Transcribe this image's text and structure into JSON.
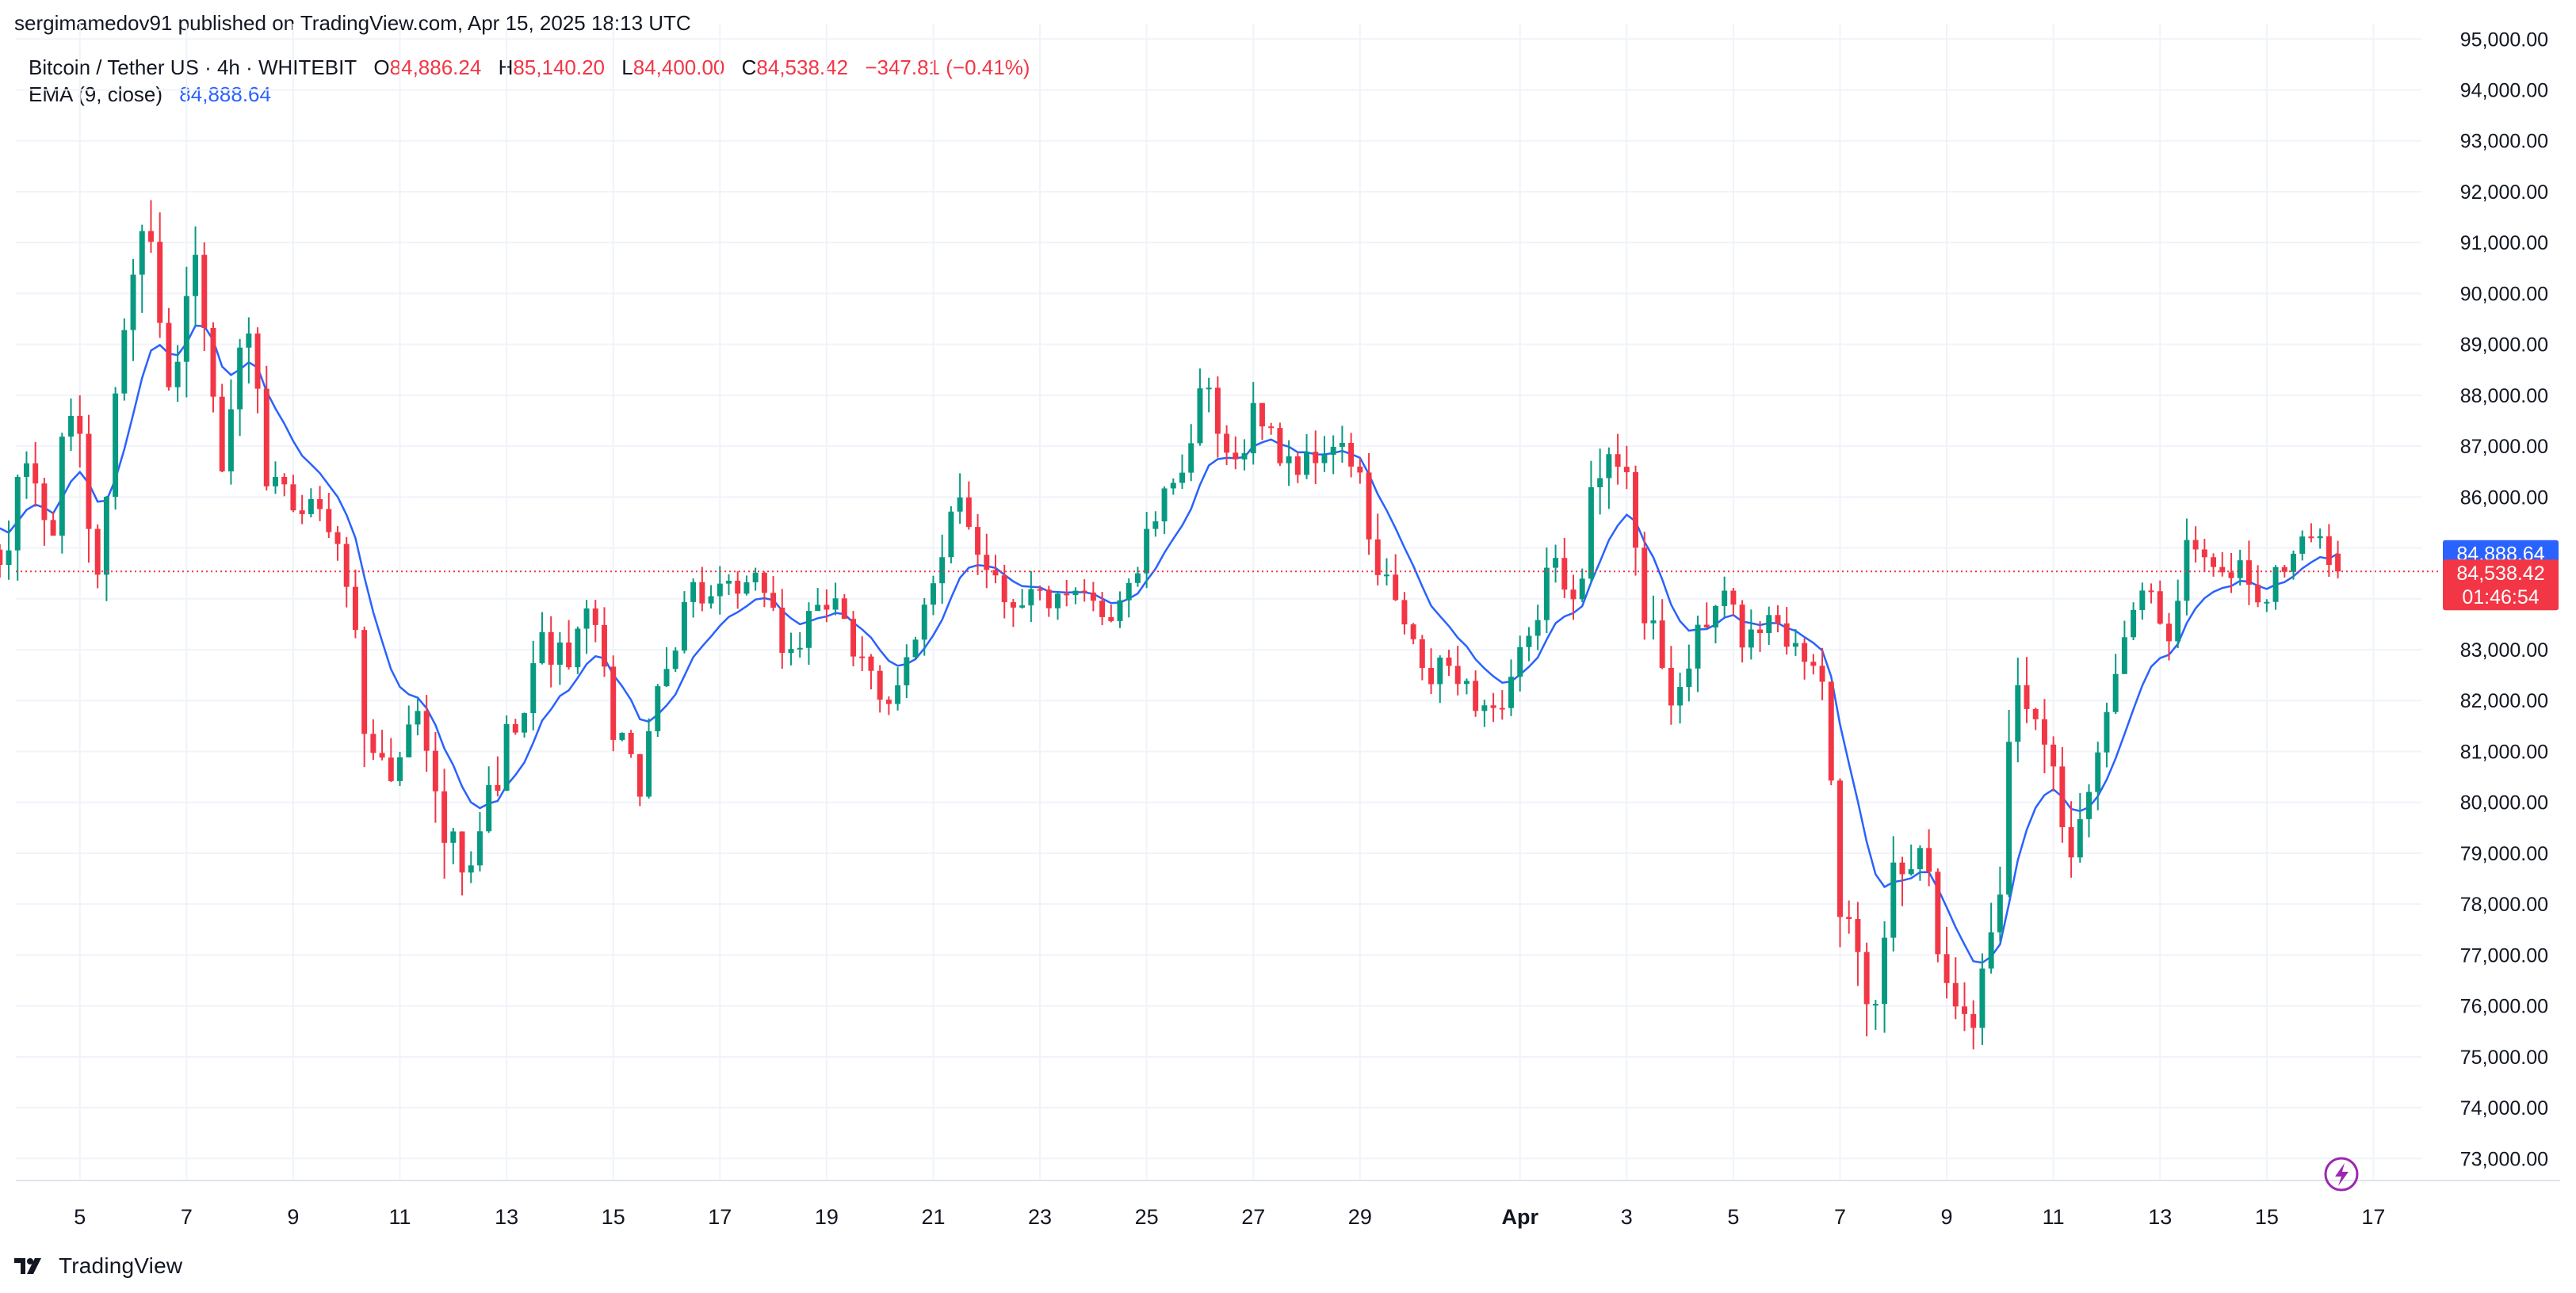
{
  "header": {
    "published": "sergimamedov91 published on TradingView.com, Apr 15, 2025 18:13 UTC",
    "symbol": "Bitcoin / Tether US · 4h · WHITEBIT",
    "open_label": "O",
    "open": "84,886.24",
    "high_label": "H",
    "high": "85,140.20",
    "low_label": "L",
    "low": "84,400.00",
    "close_label": "C",
    "close": "84,538.42",
    "change": "−347.81 (−0.41%)",
    "ema_label": "EMA (9, close)",
    "ema_value": "84,888.64"
  },
  "footer": {
    "brand": "TradingView",
    "logo_icon": "tradingview-logo-icon"
  },
  "colors": {
    "up": "#089981",
    "down": "#f23645",
    "ema": "#2962ff",
    "grid": "#f0f3fa",
    "axis_text": "#131722"
  },
  "chart_data": {
    "type": "candlestick",
    "timeframe": "4h",
    "y_range": [
      72600,
      95300
    ],
    "y_ticks": [
      73000,
      74000,
      75000,
      76000,
      77000,
      78000,
      79000,
      80000,
      81000,
      82000,
      83000,
      84000,
      85000,
      86000,
      87000,
      88000,
      89000,
      90000,
      91000,
      92000,
      93000,
      94000,
      95000
    ],
    "y_tick_labels": [
      "73,000.00",
      "74,000.00",
      "75,000.00",
      "76,000.00",
      "77,000.00",
      "78,000.00",
      "79,000.00",
      "80,000.00",
      "81,000.00",
      "82,000.00",
      "83,000.00",
      "84,000.00",
      "85,000.00",
      "86,000.00",
      "87,000.00",
      "88,000.00",
      "89,000.00",
      "90,000.00",
      "91,000.00",
      "92,000.00",
      "93,000.00",
      "94,000.00",
      "95,000.00"
    ],
    "x_range_days": [
      -0.2,
      44.9
    ],
    "x_ticks": [
      {
        "label": "5",
        "day": 1
      },
      {
        "label": "7",
        "day": 3
      },
      {
        "label": "9",
        "day": 5
      },
      {
        "label": "11",
        "day": 7
      },
      {
        "label": "13",
        "day": 9
      },
      {
        "label": "15",
        "day": 11
      },
      {
        "label": "17",
        "day": 13
      },
      {
        "label": "19",
        "day": 15
      },
      {
        "label": "21",
        "day": 17
      },
      {
        "label": "23",
        "day": 19
      },
      {
        "label": "25",
        "day": 21
      },
      {
        "label": "27",
        "day": 23
      },
      {
        "label": "29",
        "day": 25
      },
      {
        "label": "Apr",
        "day": 28,
        "bold": true
      },
      {
        "label": "3",
        "day": 30
      },
      {
        "label": "5",
        "day": 32
      },
      {
        "label": "7",
        "day": 34
      },
      {
        "label": "9",
        "day": 36
      },
      {
        "label": "11",
        "day": 38
      },
      {
        "label": "13",
        "day": 40
      },
      {
        "label": "15",
        "day": 42
      },
      {
        "label": "17",
        "day": 44
      }
    ],
    "series": [
      {
        "name": "Bitcoin / Tether US",
        "kind": "candles",
        "note_format": "[open, high, low, close] per 4h bar"
      },
      {
        "name": "EMA (9, close)",
        "kind": "line"
      }
    ],
    "anchors": [
      [
        84200,
        1500
      ],
      [
        86800,
        1300
      ],
      [
        85300,
        1300
      ],
      [
        87800,
        1800
      ],
      [
        84500,
        1300
      ],
      [
        89400,
        1300
      ],
      [
        91600,
        2200
      ],
      [
        88400,
        1400
      ],
      [
        90600,
        1700
      ],
      [
        86500,
        1300
      ],
      [
        88900,
        1700
      ],
      [
        86200,
        1200
      ],
      [
        85900,
        800
      ],
      [
        85800,
        700
      ],
      [
        84600,
        1000
      ],
      [
        81200,
        1600
      ],
      [
        80500,
        1300
      ],
      [
        82200,
        1600
      ],
      [
        79300,
        1700
      ],
      [
        78400,
        1500
      ],
      [
        80200,
        1300
      ],
      [
        81800,
        1200
      ],
      [
        83100,
        1000
      ],
      [
        82800,
        1000
      ],
      [
        83600,
        1200
      ],
      [
        81500,
        1100
      ],
      [
        80400,
        1000
      ],
      [
        82600,
        1000
      ],
      [
        84200,
        900
      ],
      [
        84000,
        900
      ],
      [
        84100,
        800
      ],
      [
        84300,
        800
      ],
      [
        82900,
        1000
      ],
      [
        83500,
        900
      ],
      [
        84100,
        900
      ],
      [
        82600,
        1000
      ],
      [
        81800,
        900
      ],
      [
        83200,
        1000
      ],
      [
        84200,
        900
      ],
      [
        86000,
        1200
      ],
      [
        84800,
        1000
      ],
      [
        84000,
        900
      ],
      [
        84100,
        800
      ],
      [
        83900,
        700
      ],
      [
        84000,
        700
      ],
      [
        83700,
        700
      ],
      [
        84400,
        800
      ],
      [
        85600,
        900
      ],
      [
        86700,
        1000
      ],
      [
        87900,
        1200
      ],
      [
        86500,
        1000
      ],
      [
        87700,
        1200
      ],
      [
        86900,
        1100
      ],
      [
        86600,
        1000
      ],
      [
        87000,
        900
      ],
      [
        86700,
        900
      ],
      [
        84400,
        1200
      ],
      [
        83600,
        1000
      ],
      [
        82400,
        1000
      ],
      [
        82700,
        900
      ],
      [
        82000,
        900
      ],
      [
        81800,
        800
      ],
      [
        83000,
        800
      ],
      [
        84600,
        900
      ],
      [
        84300,
        900
      ],
      [
        86400,
        1400
      ],
      [
        86900,
        1300
      ],
      [
        83200,
        1400
      ],
      [
        82000,
        1200
      ],
      [
        83200,
        1100
      ],
      [
        84000,
        1000
      ],
      [
        83200,
        900
      ],
      [
        83800,
        900
      ],
      [
        83000,
        900
      ],
      [
        82700,
        900
      ],
      [
        77500,
        1600
      ],
      [
        75600,
        1400
      ],
      [
        78600,
        1800
      ],
      [
        79300,
        1300
      ],
      [
        76900,
        1200
      ],
      [
        75500,
        1300
      ],
      [
        77600,
        1500
      ],
      [
        82400,
        1600
      ],
      [
        81600,
        1300
      ],
      [
        79100,
        1200
      ],
      [
        80600,
        1100
      ],
      [
        82600,
        1100
      ],
      [
        84100,
        1000
      ],
      [
        83400,
        900
      ],
      [
        85100,
        1100
      ],
      [
        84400,
        1000
      ],
      [
        84600,
        1000
      ],
      [
        84000,
        900
      ],
      [
        84800,
        900
      ],
      [
        85400,
        1000
      ],
      [
        84538,
        700
      ]
    ],
    "last_bar": {
      "open": 84886.24,
      "high": 85140.2,
      "low": 84400.0,
      "close": 84538.42
    },
    "price_labels": {
      "ema": {
        "text": "84,888.64",
        "value": 84888.64,
        "color": "#2962ff"
      },
      "last": {
        "text": "84,538.42",
        "value": 84538.42,
        "color": "#f23645"
      },
      "countdown": "01:46:54"
    },
    "grid": true,
    "legend_position": "top-left"
  }
}
